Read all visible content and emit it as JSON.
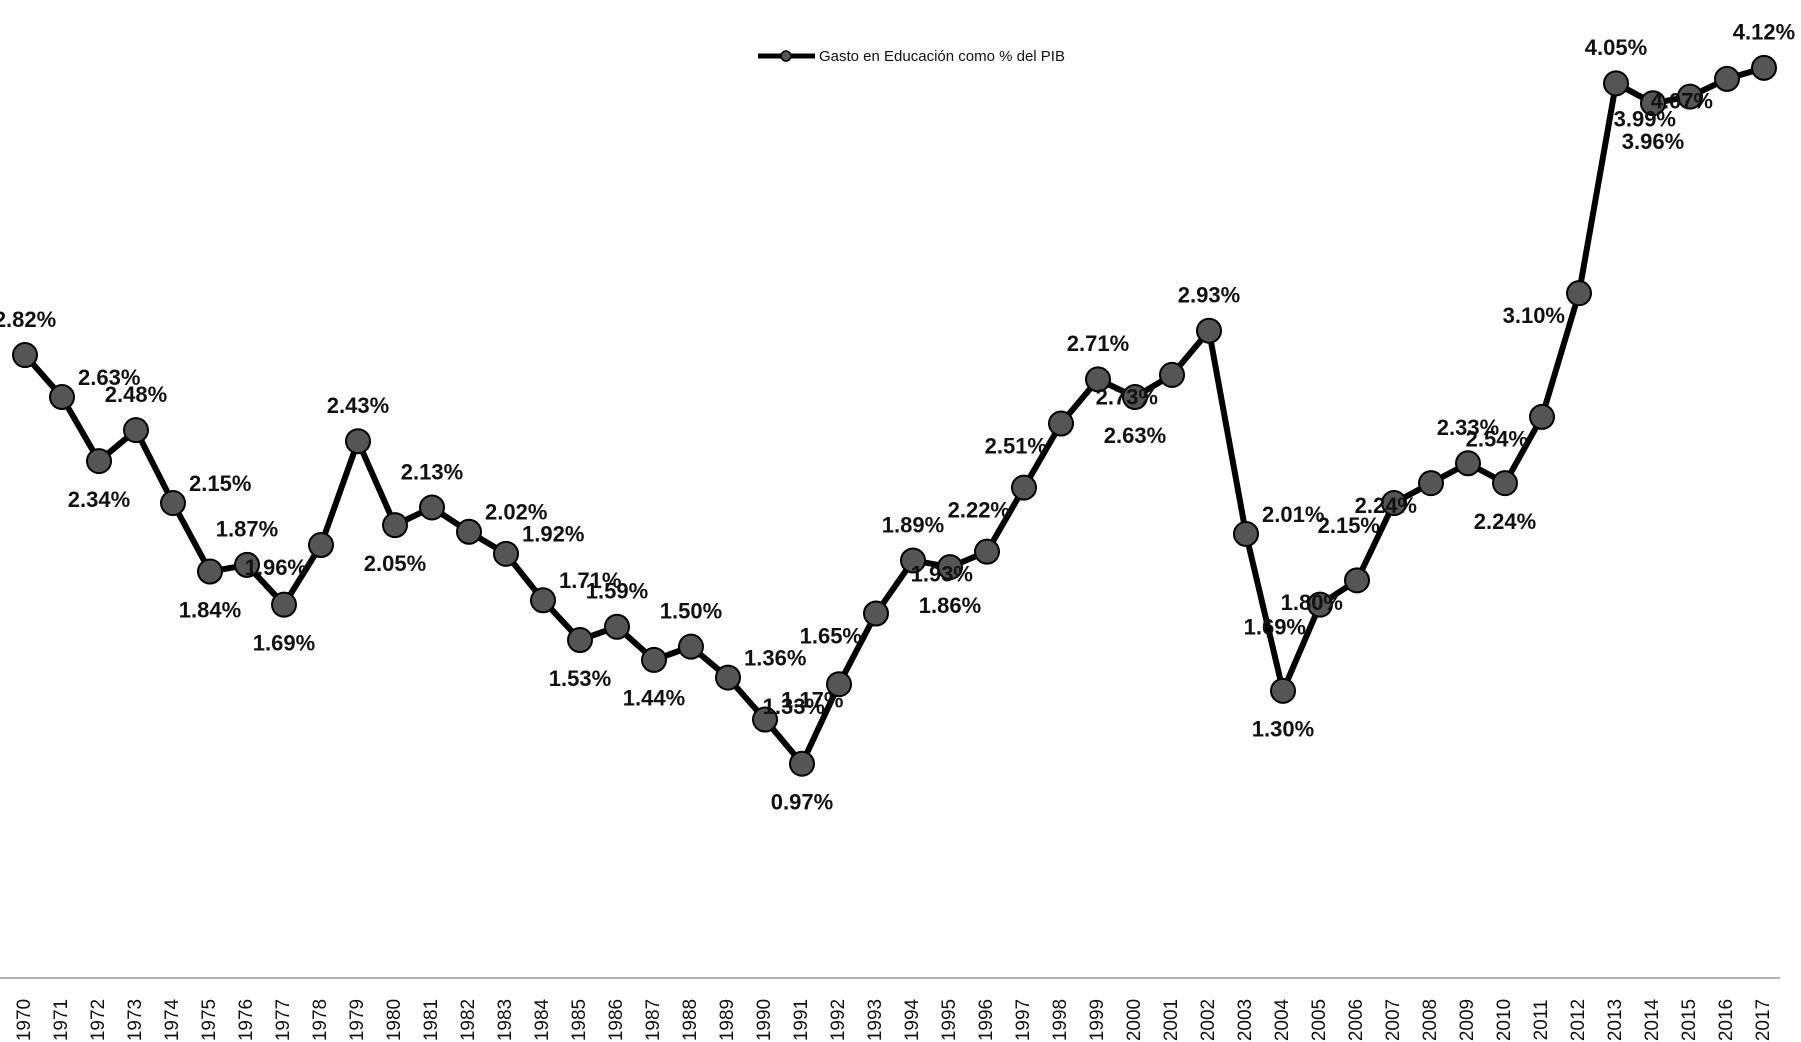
{
  "chart_data": {
    "type": "line",
    "categories": [
      "1970",
      "1971",
      "1972",
      "1973",
      "1974",
      "1975",
      "1976",
      "1977",
      "1978",
      "1979",
      "1980",
      "1981",
      "1982",
      "1983",
      "1984",
      "1985",
      "1986",
      "1987",
      "1988",
      "1989",
      "1990",
      "1991",
      "1992",
      "1993",
      "1994",
      "1995",
      "1996",
      "1997",
      "1998",
      "1999",
      "2000",
      "2001",
      "2002",
      "2003",
      "2004",
      "2005",
      "2006",
      "2007",
      "2008",
      "2009",
      "2010",
      "2011",
      "2012",
      "2013",
      "2014",
      "2015",
      "2016",
      "2017"
    ],
    "series": [
      {
        "name": "Gasto en Educación como % del PIB",
        "color": "#000000",
        "marker_color": "#555555",
        "values": [
          2.82,
          2.63,
          2.34,
          2.48,
          2.15,
          1.84,
          1.87,
          1.69,
          1.96,
          2.43,
          2.05,
          2.13,
          2.02,
          1.92,
          1.71,
          1.53,
          1.59,
          1.44,
          1.5,
          1.36,
          1.17,
          0.97,
          1.33,
          1.65,
          1.89,
          1.86,
          1.93,
          2.22,
          2.51,
          2.71,
          2.63,
          2.73,
          2.93,
          2.01,
          1.3,
          1.69,
          1.8,
          2.15,
          2.24,
          2.33,
          2.24,
          2.54,
          3.1,
          4.05,
          3.96,
          3.99,
          4.07,
          4.12
        ],
        "value_labels": [
          "2.82%",
          "2.63%",
          "2.34%",
          "2.48%",
          "2.15%",
          "1.84%",
          "1.87%",
          "1.69%",
          "1.96%",
          "2.43%",
          "2.05%",
          "2.13%",
          "2.02%",
          "1.92%",
          "1.71%",
          "1.53%",
          "1.59%",
          "1.44%",
          "1.50%",
          "1.36%",
          "1.17%",
          "0.97%",
          "1.33%",
          "1.65%",
          "1.89%",
          "1.86%",
          "1.93%",
          "2.22%",
          "2.51%",
          "2.71%",
          "2.63%",
          "2.73%",
          "2.93%",
          "2.01%",
          "1.30%",
          "1.69%",
          "1.80%",
          "2.15%",
          "2.24%",
          "2.33%",
          "2.24%",
          "2.54%",
          "3.10%",
          "4.05%",
          "3.96%",
          "3.99%",
          "4.07%",
          "4.12%"
        ]
      }
    ],
    "ylim": [
      0,
      4.4
    ],
    "legend": "top"
  }
}
